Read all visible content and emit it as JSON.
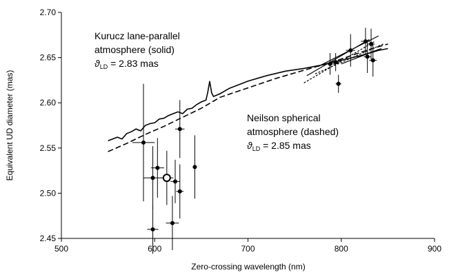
{
  "chart_data": {
    "type": "scatter",
    "title": "",
    "xlabel": "Zero-crossing wavelength (nm)",
    "ylabel": "Equivalent UD diameter (mas)",
    "xlim": [
      500,
      900
    ],
    "ylim": [
      2.45,
      2.7
    ],
    "x_ticks": [
      "500",
      "600",
      "700",
      "800",
      "900"
    ],
    "y_ticks": [
      "2.45",
      "2.50",
      "2.55",
      "2.60",
      "2.65",
      "2.70"
    ],
    "grid": false,
    "legend": "none",
    "annotations": [
      {
        "lines": [
          "Kurucz lane-parallel",
          "atmosphere (solid)"
        ],
        "theta_symbol": "ϑ",
        "theta_sub": "LD",
        "theta_value": " = 2.83 mas"
      },
      {
        "lines": [
          "Neilson spherical",
          "atmosphere (dashed)"
        ],
        "theta_symbol": "ϑ",
        "theta_sub": "LD",
        "theta_value": " = 2.85 mas"
      }
    ],
    "series": [
      {
        "style": "solid",
        "x": [
          550,
          560,
          565,
          570,
          575,
          580,
          585,
          590,
          595,
          600,
          605,
          610,
          615,
          620,
          625,
          630,
          635,
          640,
          645,
          650,
          655,
          657,
          659,
          661,
          663,
          670,
          680,
          690,
          700,
          720,
          740,
          760,
          780,
          800,
          820,
          840,
          850
        ],
        "y": [
          2.558,
          2.562,
          2.56,
          2.566,
          2.568,
          2.571,
          2.569,
          2.575,
          2.577,
          2.578,
          2.582,
          2.583,
          2.586,
          2.588,
          2.59,
          2.588,
          2.593,
          2.594,
          2.598,
          2.601,
          2.603,
          2.612,
          2.624,
          2.611,
          2.607,
          2.61,
          2.616,
          2.62,
          2.624,
          2.63,
          2.635,
          2.638,
          2.642,
          2.647,
          2.652,
          2.658,
          2.66
        ]
      },
      {
        "style": "dashed",
        "x": [
          550,
          570,
          590,
          610,
          630,
          650,
          670,
          690,
          710,
          730,
          750,
          770,
          790,
          810,
          830,
          850
        ],
        "y": [
          2.546,
          2.555,
          2.565,
          2.574,
          2.584,
          2.594,
          2.606,
          2.613,
          2.62,
          2.627,
          2.633,
          2.639,
          2.645,
          2.652,
          2.659,
          2.665
        ]
      }
    ],
    "fit_lines": [
      {
        "style": "solid",
        "x": [
          763,
          830
        ],
        "y": [
          2.63,
          2.67
        ]
      },
      {
        "style": "solid",
        "x": [
          775,
          840
        ],
        "y": [
          2.64,
          2.674
        ]
      },
      {
        "style": "solid",
        "x": [
          800,
          840
        ],
        "y": [
          2.643,
          2.659
        ]
      },
      {
        "style": "solid",
        "x": [
          818,
          843
        ],
        "y": [
          2.651,
          2.66
        ]
      },
      {
        "style": "dashed",
        "x": [
          760,
          836
        ],
        "y": [
          2.622,
          2.668
        ]
      },
      {
        "style": "dashed",
        "x": [
          772,
          845
        ],
        "y": [
          2.632,
          2.665
        ]
      }
    ],
    "points": [
      {
        "x": 588,
        "y": 2.556,
        "xerr": 12,
        "yerr": 0.065,
        "marker": "filled"
      },
      {
        "x": 598,
        "y": 2.517,
        "xerr": 10,
        "yerr": 0.035,
        "marker": "filled"
      },
      {
        "x": 603,
        "y": 2.528,
        "xerr": 7,
        "yerr": 0.033,
        "marker": "filled"
      },
      {
        "x": 598,
        "y": 2.46,
        "xerr": 6,
        "yerr": 0.027,
        "marker": "filled"
      },
      {
        "x": 613,
        "y": 2.517,
        "xerr": 7,
        "yerr": 0.03,
        "marker": "open"
      },
      {
        "x": 619,
        "y": 2.467,
        "xerr": 7,
        "yerr": 0.03,
        "marker": "filled"
      },
      {
        "x": 622,
        "y": 2.513,
        "xerr": 5,
        "yerr": 0.024,
        "marker": "filled"
      },
      {
        "x": 627,
        "y": 2.571,
        "xerr": 5,
        "yerr": 0.032,
        "marker": "filled"
      },
      {
        "x": 627,
        "y": 2.502,
        "xerr": 4,
        "yerr": 0.03,
        "marker": "filled"
      },
      {
        "x": 643,
        "y": 2.529,
        "xerr": 0,
        "yerr": 0.035,
        "marker": "filled"
      },
      {
        "x": 788,
        "y": 2.643,
        "xerr": 5,
        "yerr": 0.012,
        "marker": "filled"
      },
      {
        "x": 794,
        "y": 2.645,
        "xerr": 4,
        "yerr": 0.01,
        "marker": "filled"
      },
      {
        "x": 797,
        "y": 2.621,
        "xerr": 3,
        "yerr": 0.01,
        "marker": "filled"
      },
      {
        "x": 810,
        "y": 2.658,
        "xerr": 5,
        "yerr": 0.018,
        "marker": "filled"
      },
      {
        "x": 826,
        "y": 2.668,
        "xerr": 5,
        "yerr": 0.015,
        "marker": "filled"
      },
      {
        "x": 828,
        "y": 2.651,
        "xerr": 4,
        "yerr": 0.018,
        "marker": "filled"
      },
      {
        "x": 832,
        "y": 2.665,
        "xerr": 4,
        "yerr": 0.017,
        "marker": "filled"
      },
      {
        "x": 834,
        "y": 2.647,
        "xerr": 4,
        "yerr": 0.018,
        "marker": "filled"
      }
    ]
  }
}
